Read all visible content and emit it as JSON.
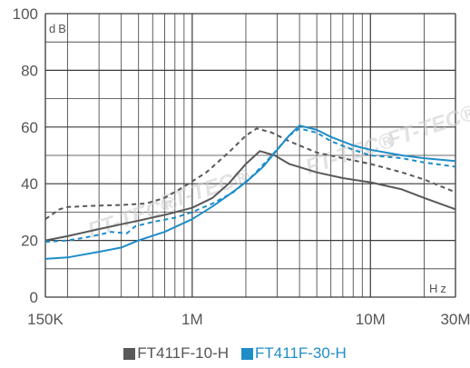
{
  "chart_data": {
    "type": "line",
    "x_scale": "log",
    "y_unit": "dB",
    "x_unit": "Hz",
    "ylim": [
      0,
      100
    ],
    "xlim": [
      150000,
      30000000
    ],
    "y_ticks": [
      0,
      20,
      40,
      60,
      80,
      100
    ],
    "x_ticks": [
      {
        "value": 150000,
        "label": "150K"
      },
      {
        "value": 1000000,
        "label": "1M"
      },
      {
        "value": 10000000,
        "label": "10M"
      },
      {
        "value": 30000000,
        "label": "30M"
      }
    ],
    "grid": true,
    "legend_position": "bottom",
    "watermark": "FT-TEC®",
    "series": [
      {
        "name": "FT411F-10-H",
        "color": "#595959",
        "style": "solid",
        "points": [
          [
            150000,
            20
          ],
          [
            200000,
            21.5
          ],
          [
            300000,
            24
          ],
          [
            500000,
            27
          ],
          [
            700000,
            29
          ],
          [
            1000000,
            31.5
          ],
          [
            1300000,
            35
          ],
          [
            1600000,
            40
          ],
          [
            2000000,
            47
          ],
          [
            2400000,
            51.5
          ],
          [
            2900000,
            50
          ],
          [
            3500000,
            47
          ],
          [
            5000000,
            44
          ],
          [
            7000000,
            42
          ],
          [
            10000000,
            40.5
          ],
          [
            15000000,
            38
          ],
          [
            20000000,
            35
          ],
          [
            30000000,
            31
          ]
        ]
      },
      {
        "name": "FT411F-10-H",
        "color": "#595959",
        "style": "dashed",
        "points": [
          [
            150000,
            27.5
          ],
          [
            180000,
            31
          ],
          [
            200000,
            31.8
          ],
          [
            300000,
            32.3
          ],
          [
            400000,
            32.5
          ],
          [
            550000,
            33
          ],
          [
            700000,
            35
          ],
          [
            900000,
            39
          ],
          [
            1200000,
            44
          ],
          [
            1600000,
            51
          ],
          [
            2000000,
            57
          ],
          [
            2300000,
            59.5
          ],
          [
            2800000,
            58
          ],
          [
            3500000,
            55
          ],
          [
            5000000,
            51
          ],
          [
            7000000,
            49
          ],
          [
            10000000,
            47
          ],
          [
            15000000,
            44
          ],
          [
            20000000,
            41.5
          ],
          [
            30000000,
            37
          ]
        ]
      },
      {
        "name": "FT411F-30-H",
        "color": "#1f8dc8",
        "style": "solid",
        "points": [
          [
            150000,
            13.5
          ],
          [
            200000,
            14
          ],
          [
            300000,
            16
          ],
          [
            400000,
            17.5
          ],
          [
            500000,
            20
          ],
          [
            700000,
            23
          ],
          [
            1000000,
            27.5
          ],
          [
            1300000,
            32
          ],
          [
            1600000,
            36
          ],
          [
            2000000,
            40.5
          ],
          [
            2500000,
            46
          ],
          [
            3000000,
            52
          ],
          [
            3500000,
            57
          ],
          [
            4000000,
            60.5
          ],
          [
            5000000,
            59
          ],
          [
            6000000,
            56.5
          ],
          [
            8000000,
            53.5
          ],
          [
            10000000,
            52
          ],
          [
            15000000,
            50
          ],
          [
            20000000,
            49
          ],
          [
            30000000,
            48
          ]
        ]
      },
      {
        "name": "FT411F-30-H",
        "color": "#1f8dc8",
        "style": "dashed",
        "points": [
          [
            150000,
            19.5
          ],
          [
            200000,
            20
          ],
          [
            250000,
            21
          ],
          [
            300000,
            22
          ],
          [
            350000,
            23
          ],
          [
            430000,
            22.5
          ],
          [
            480000,
            25
          ],
          [
            600000,
            26.5
          ],
          [
            800000,
            28
          ],
          [
            1000000,
            30
          ],
          [
            1300000,
            33
          ],
          [
            1700000,
            37
          ],
          [
            2200000,
            43
          ],
          [
            2800000,
            50
          ],
          [
            3500000,
            57
          ],
          [
            4000000,
            59.5
          ],
          [
            5000000,
            58
          ],
          [
            6000000,
            55
          ],
          [
            8000000,
            52
          ],
          [
            10000000,
            50
          ],
          [
            15000000,
            49
          ],
          [
            20000000,
            47.5
          ],
          [
            30000000,
            46
          ]
        ]
      }
    ],
    "legend": [
      {
        "label": "FT411F-10-H",
        "color": "#595959"
      },
      {
        "label": "FT411F-30-H",
        "color": "#1f8dc8"
      }
    ]
  }
}
